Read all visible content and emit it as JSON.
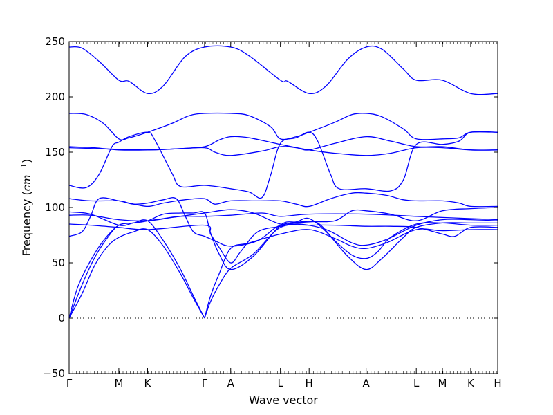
{
  "chart_data": {
    "type": "line",
    "xlabel": "Wave vector",
    "ylabel": "Frequency (cm⁻¹)",
    "ylabel_plain": "Frequency (",
    "ylabel_unit": "cm",
    "ylabel_exp": "−1",
    "ylabel_close": ")",
    "ylim": [
      -50,
      250
    ],
    "yticks": [
      -50,
      0,
      50,
      100,
      150,
      200,
      250
    ],
    "zero_line": "dotted",
    "grid": false,
    "legend": "none",
    "line_color": "#0000ff",
    "x_range": [
      0,
      100
    ],
    "high_symmetry_points": [
      {
        "label": "Γ",
        "x": 0
      },
      {
        "label": "M",
        "x": 11.6
      },
      {
        "label": "K",
        "x": 18.3
      },
      {
        "label": "Γ",
        "x": 31.6
      },
      {
        "label": "A",
        "x": 37.7
      },
      {
        "label": "L",
        "x": 49.3
      },
      {
        "label": "H",
        "x": 56.0
      },
      {
        "label": "A",
        "x": 69.3
      },
      {
        "label": "L",
        "x": 81.0
      },
      {
        "label": "M",
        "x": 87.1
      },
      {
        "label": "K",
        "x": 93.7
      },
      {
        "label": "H",
        "x": 100
      }
    ],
    "series": [
      {
        "points": [
          [
            0,
            245
          ],
          [
            3,
            244
          ],
          [
            7,
            232
          ],
          [
            11.6,
            215
          ],
          [
            14,
            214
          ],
          [
            18.3,
            203
          ],
          [
            22,
            210
          ],
          [
            27,
            236
          ],
          [
            31.6,
            245
          ],
          [
            37.7,
            245
          ],
          [
            42,
            237
          ],
          [
            49.3,
            215
          ],
          [
            51,
            214
          ],
          [
            56,
            203
          ],
          [
            60,
            210
          ],
          [
            65,
            234
          ],
          [
            69.3,
            245
          ],
          [
            73,
            243
          ],
          [
            78,
            225
          ],
          [
            81,
            215
          ],
          [
            87.1,
            215
          ],
          [
            93.7,
            203
          ],
          [
            100,
            203
          ]
        ]
      },
      {
        "points": [
          [
            0,
            185
          ],
          [
            4,
            184
          ],
          [
            8,
            176
          ],
          [
            11.6,
            162
          ],
          [
            14,
            163
          ],
          [
            18.3,
            168
          ],
          [
            24,
            176
          ],
          [
            28,
            183
          ],
          [
            31.6,
            185
          ],
          [
            37.7,
            185
          ],
          [
            42,
            183
          ],
          [
            47,
            173
          ],
          [
            49.3,
            162
          ],
          [
            53,
            164
          ],
          [
            56,
            168
          ],
          [
            62,
            177
          ],
          [
            66,
            184
          ],
          [
            69.3,
            185
          ],
          [
            73,
            182
          ],
          [
            78,
            171
          ],
          [
            81,
            162
          ],
          [
            87.1,
            162
          ],
          [
            91,
            163
          ],
          [
            93.7,
            168
          ],
          [
            100,
            168
          ]
        ]
      },
      {
        "points": [
          [
            0,
            155
          ],
          [
            6,
            154
          ],
          [
            11.6,
            152
          ],
          [
            18.3,
            152
          ],
          [
            25,
            153
          ],
          [
            31.6,
            155
          ],
          [
            35,
            161
          ],
          [
            37.7,
            164
          ],
          [
            42,
            163
          ],
          [
            49.3,
            157
          ],
          [
            56,
            152
          ],
          [
            62,
            149
          ],
          [
            69.3,
            147
          ],
          [
            75,
            149
          ],
          [
            81,
            154
          ],
          [
            87.1,
            154
          ],
          [
            93.7,
            152
          ],
          [
            100,
            152
          ]
        ]
      },
      {
        "points": [
          [
            0,
            154
          ],
          [
            8,
            153
          ],
          [
            18.3,
            152
          ],
          [
            25,
            153
          ],
          [
            31.6,
            154
          ],
          [
            34,
            150
          ],
          [
            37.7,
            147
          ],
          [
            45,
            151
          ],
          [
            49.3,
            155
          ],
          [
            53,
            154
          ],
          [
            56,
            152
          ],
          [
            62,
            158
          ],
          [
            69.3,
            164
          ],
          [
            75,
            160
          ],
          [
            81,
            155
          ],
          [
            87.1,
            155
          ],
          [
            93.7,
            152
          ],
          [
            100,
            152
          ]
        ]
      },
      {
        "points": [
          [
            0,
            120
          ],
          [
            4,
            118
          ],
          [
            7,
            130
          ],
          [
            10,
            155
          ],
          [
            11.6,
            159
          ],
          [
            14,
            164
          ],
          [
            18.3,
            168
          ],
          [
            20,
            161
          ],
          [
            24,
            131
          ],
          [
            26,
            119
          ],
          [
            31.6,
            120
          ],
          [
            37.7,
            117
          ],
          [
            42,
            114
          ],
          [
            45,
            109
          ],
          [
            47,
            129
          ],
          [
            49.3,
            158
          ],
          [
            53,
            163
          ],
          [
            56,
            168
          ],
          [
            58,
            160
          ],
          [
            61,
            130
          ],
          [
            63,
            117
          ],
          [
            69.3,
            117
          ],
          [
            75,
            115
          ],
          [
            78,
            125
          ],
          [
            81,
            157
          ],
          [
            87.1,
            157
          ],
          [
            91,
            160
          ],
          [
            93.7,
            168
          ],
          [
            100,
            168
          ]
        ]
      },
      {
        "points": [
          [
            0,
            108
          ],
          [
            5,
            106
          ],
          [
            11.6,
            106
          ],
          [
            14,
            104
          ],
          [
            18.3,
            101
          ],
          [
            22,
            104
          ],
          [
            27,
            107
          ],
          [
            31.6,
            108
          ],
          [
            34,
            103
          ],
          [
            37.7,
            106
          ],
          [
            44,
            106
          ],
          [
            49.3,
            106
          ],
          [
            53,
            103
          ],
          [
            56,
            101
          ],
          [
            61,
            108
          ],
          [
            66,
            113
          ],
          [
            69.3,
            113
          ],
          [
            74,
            111
          ],
          [
            78,
            107
          ],
          [
            81,
            106
          ],
          [
            87.1,
            106
          ],
          [
            91,
            104
          ],
          [
            93.7,
            101
          ],
          [
            100,
            101
          ]
        ]
      },
      {
        "points": [
          [
            0,
            74
          ],
          [
            3,
            78
          ],
          [
            5,
            92
          ],
          [
            7,
            108
          ],
          [
            11.6,
            106
          ],
          [
            15,
            103
          ],
          [
            18.3,
            104
          ],
          [
            22,
            107
          ],
          [
            25,
            108
          ],
          [
            27,
            93
          ],
          [
            29,
            78
          ],
          [
            31.6,
            74
          ],
          [
            34,
            70
          ],
          [
            37.7,
            65
          ],
          [
            44,
            70
          ],
          [
            49.3,
            84
          ],
          [
            56,
            87
          ],
          [
            62,
            88
          ],
          [
            66,
            97
          ],
          [
            69.3,
            97
          ],
          [
            75,
            94
          ],
          [
            81,
            88
          ],
          [
            87.1,
            97
          ],
          [
            93.7,
            99
          ],
          [
            100,
            100
          ]
        ]
      },
      {
        "points": [
          [
            0,
            96
          ],
          [
            5,
            94
          ],
          [
            11.6,
            84
          ],
          [
            15,
            86
          ],
          [
            18.3,
            88
          ],
          [
            22,
            90
          ],
          [
            26,
            92
          ],
          [
            31.6,
            92
          ],
          [
            37.7,
            93
          ],
          [
            45,
            95
          ],
          [
            49.3,
            92
          ],
          [
            56,
            94
          ],
          [
            69.3,
            94
          ],
          [
            81,
            92
          ],
          [
            87.1,
            91
          ],
          [
            93.7,
            90
          ],
          [
            100,
            89
          ]
        ]
      },
      {
        "points": [
          [
            0,
            93
          ],
          [
            5,
            93
          ],
          [
            11.6,
            89
          ],
          [
            18.3,
            88
          ],
          [
            24,
            91
          ],
          [
            31.6,
            95
          ],
          [
            37.7,
            98
          ],
          [
            43,
            95
          ],
          [
            49.3,
            85
          ],
          [
            54,
            85
          ],
          [
            60,
            80
          ],
          [
            66,
            68
          ],
          [
            69.3,
            66
          ],
          [
            74,
            71
          ],
          [
            81,
            84
          ],
          [
            87.1,
            89
          ],
          [
            93.7,
            89
          ],
          [
            100,
            88
          ]
        ]
      },
      {
        "points": [
          [
            0,
            85
          ],
          [
            5,
            84
          ],
          [
            11.6,
            82
          ],
          [
            18.3,
            80
          ],
          [
            31.6,
            84
          ],
          [
            33,
            76
          ],
          [
            35,
            64
          ],
          [
            37.7,
            50
          ],
          [
            40,
            60
          ],
          [
            44,
            78
          ],
          [
            49.3,
            83
          ],
          [
            54,
            87
          ],
          [
            58,
            86
          ],
          [
            62,
            70
          ],
          [
            66,
            57
          ],
          [
            69.3,
            54
          ],
          [
            72,
            60
          ],
          [
            75,
            73
          ],
          [
            81,
            85
          ],
          [
            87.1,
            86
          ],
          [
            93.7,
            84
          ],
          [
            100,
            84
          ]
        ]
      },
      {
        "points": [
          [
            0,
            0
          ],
          [
            2,
            28
          ],
          [
            5,
            52
          ],
          [
            8,
            70
          ],
          [
            11.6,
            84
          ],
          [
            15,
            86
          ],
          [
            18.3,
            88
          ],
          [
            22,
            94
          ],
          [
            26,
            95
          ],
          [
            29,
            95
          ],
          [
            31.6,
            95
          ],
          [
            33,
            77
          ],
          [
            35,
            58
          ],
          [
            37.7,
            44
          ],
          [
            43,
            56
          ],
          [
            49.3,
            84
          ],
          [
            53,
            87
          ],
          [
            56,
            90
          ],
          [
            60,
            78
          ],
          [
            65,
            56
          ],
          [
            69.3,
            44
          ],
          [
            73,
            54
          ],
          [
            78,
            73
          ],
          [
            81,
            82
          ],
          [
            87.1,
            86
          ],
          [
            93.7,
            86
          ],
          [
            100,
            86
          ]
        ]
      },
      {
        "points": [
          [
            0,
            0
          ],
          [
            3,
            22
          ],
          [
            6,
            48
          ],
          [
            9,
            65
          ],
          [
            11.6,
            73
          ],
          [
            15,
            78
          ],
          [
            18.3,
            80
          ],
          [
            22,
            65
          ],
          [
            26,
            40
          ],
          [
            29,
            18
          ],
          [
            31.6,
            0
          ]
        ]
      },
      {
        "points": [
          [
            0,
            0
          ],
          [
            3,
            30
          ],
          [
            6,
            55
          ],
          [
            9,
            73
          ],
          [
            11.6,
            84
          ],
          [
            15,
            86
          ],
          [
            18.3,
            88
          ],
          [
            22,
            70
          ],
          [
            26,
            44
          ],
          [
            29,
            20
          ],
          [
            31.6,
            0
          ]
        ]
      },
      {
        "points": [
          [
            31.6,
            0
          ],
          [
            33,
            20
          ],
          [
            35,
            40
          ],
          [
            37.7,
            63
          ],
          [
            42,
            68
          ],
          [
            49.3,
            76
          ],
          [
            56,
            80
          ],
          [
            62,
            72
          ],
          [
            66,
            65
          ],
          [
            69.3,
            63
          ],
          [
            74,
            68
          ],
          [
            81,
            80
          ],
          [
            87.1,
            79
          ],
          [
            93.7,
            80
          ],
          [
            100,
            80
          ]
        ]
      },
      {
        "points": [
          [
            31.6,
            0
          ],
          [
            33,
            15
          ],
          [
            35,
            30
          ],
          [
            37.7,
            45
          ],
          [
            43,
            58
          ],
          [
            49.3,
            82
          ],
          [
            56,
            84
          ],
          [
            62,
            84
          ],
          [
            69.3,
            83
          ],
          [
            75,
            83
          ],
          [
            81,
            82
          ],
          [
            87.1,
            76
          ],
          [
            90,
            74
          ],
          [
            93.7,
            82
          ],
          [
            100,
            82
          ]
        ]
      }
    ]
  }
}
